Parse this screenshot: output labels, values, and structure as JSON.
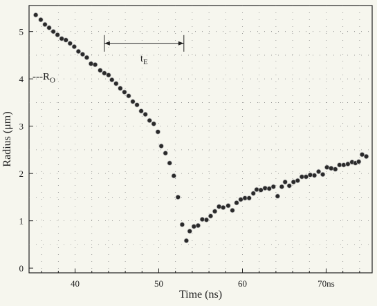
{
  "chart_data": {
    "type": "scatter",
    "xlabel": "Time (ns)",
    "ylabel": "Radius (μm)",
    "xlim": [
      34.5,
      75.5
    ],
    "ylim": [
      -0.1,
      5.55
    ],
    "x_ticks": [
      {
        "value": 40,
        "label": "40"
      },
      {
        "value": 50,
        "label": "50"
      },
      {
        "value": 60,
        "label": "60"
      },
      {
        "value": 70,
        "label": "70ns"
      }
    ],
    "y_ticks": [
      {
        "value": 0,
        "label": "0"
      },
      {
        "value": 1,
        "label": "1"
      },
      {
        "value": 2,
        "label": "2"
      },
      {
        "value": 3,
        "label": "3"
      },
      {
        "value": 4,
        "label": "4"
      },
      {
        "value": 5,
        "label": "5"
      }
    ],
    "grid": "dotted",
    "annotations": {
      "r0": {
        "label": "---R",
        "subscript": "O",
        "y": 4.05
      },
      "tE": {
        "label": "t",
        "subscript": "E",
        "x_start": 43.5,
        "x_end": 53.0,
        "y": 4.75
      }
    },
    "points": [
      [
        35.3,
        5.35
      ],
      [
        35.9,
        5.25
      ],
      [
        36.4,
        5.15
      ],
      [
        36.9,
        5.08
      ],
      [
        37.4,
        5.0
      ],
      [
        37.9,
        4.93
      ],
      [
        38.4,
        4.85
      ],
      [
        38.9,
        4.82
      ],
      [
        39.4,
        4.75
      ],
      [
        39.9,
        4.68
      ],
      [
        40.4,
        4.58
      ],
      [
        40.9,
        4.52
      ],
      [
        41.4,
        4.45
      ],
      [
        41.9,
        4.32
      ],
      [
        42.4,
        4.3
      ],
      [
        43.0,
        4.18
      ],
      [
        43.5,
        4.12
      ],
      [
        44.0,
        4.08
      ],
      [
        44.4,
        3.98
      ],
      [
        44.9,
        3.9
      ],
      [
        45.4,
        3.8
      ],
      [
        45.9,
        3.72
      ],
      [
        46.4,
        3.64
      ],
      [
        46.9,
        3.52
      ],
      [
        47.4,
        3.45
      ],
      [
        47.9,
        3.32
      ],
      [
        48.4,
        3.25
      ],
      [
        48.9,
        3.12
      ],
      [
        49.4,
        3.05
      ],
      [
        49.9,
        2.88
      ],
      [
        50.3,
        2.58
      ],
      [
        50.8,
        2.43
      ],
      [
        51.3,
        2.22
      ],
      [
        51.8,
        1.95
      ],
      [
        52.3,
        1.5
      ],
      [
        52.8,
        0.92
      ],
      [
        53.3,
        0.58
      ],
      [
        53.7,
        0.78
      ],
      [
        54.2,
        0.88
      ],
      [
        54.7,
        0.9
      ],
      [
        55.2,
        1.03
      ],
      [
        55.7,
        1.02
      ],
      [
        56.2,
        1.1
      ],
      [
        56.7,
        1.2
      ],
      [
        57.2,
        1.3
      ],
      [
        57.7,
        1.28
      ],
      [
        58.3,
        1.32
      ],
      [
        58.8,
        1.22
      ],
      [
        59.3,
        1.38
      ],
      [
        59.8,
        1.45
      ],
      [
        60.3,
        1.48
      ],
      [
        60.8,
        1.48
      ],
      [
        61.3,
        1.58
      ],
      [
        61.7,
        1.66
      ],
      [
        62.2,
        1.65
      ],
      [
        62.7,
        1.69
      ],
      [
        63.2,
        1.68
      ],
      [
        63.7,
        1.72
      ],
      [
        64.2,
        1.52
      ],
      [
        64.7,
        1.72
      ],
      [
        65.1,
        1.82
      ],
      [
        65.6,
        1.74
      ],
      [
        66.1,
        1.82
      ],
      [
        66.6,
        1.85
      ],
      [
        67.1,
        1.93
      ],
      [
        67.6,
        1.93
      ],
      [
        68.1,
        1.97
      ],
      [
        68.6,
        1.96
      ],
      [
        69.1,
        2.04
      ],
      [
        69.6,
        1.98
      ],
      [
        70.1,
        2.13
      ],
      [
        70.6,
        2.11
      ],
      [
        71.1,
        2.09
      ],
      [
        71.6,
        2.18
      ],
      [
        72.1,
        2.18
      ],
      [
        72.6,
        2.2
      ],
      [
        73.1,
        2.24
      ],
      [
        73.5,
        2.22
      ],
      [
        73.9,
        2.25
      ],
      [
        74.3,
        2.4
      ],
      [
        74.8,
        2.36
      ]
    ],
    "colors": {
      "marker": "#2a2a2a",
      "marker_edge": "#bdbdbd",
      "axis": "#222222",
      "grid": "#8a8a8a",
      "background": "#f6f6ee"
    }
  }
}
